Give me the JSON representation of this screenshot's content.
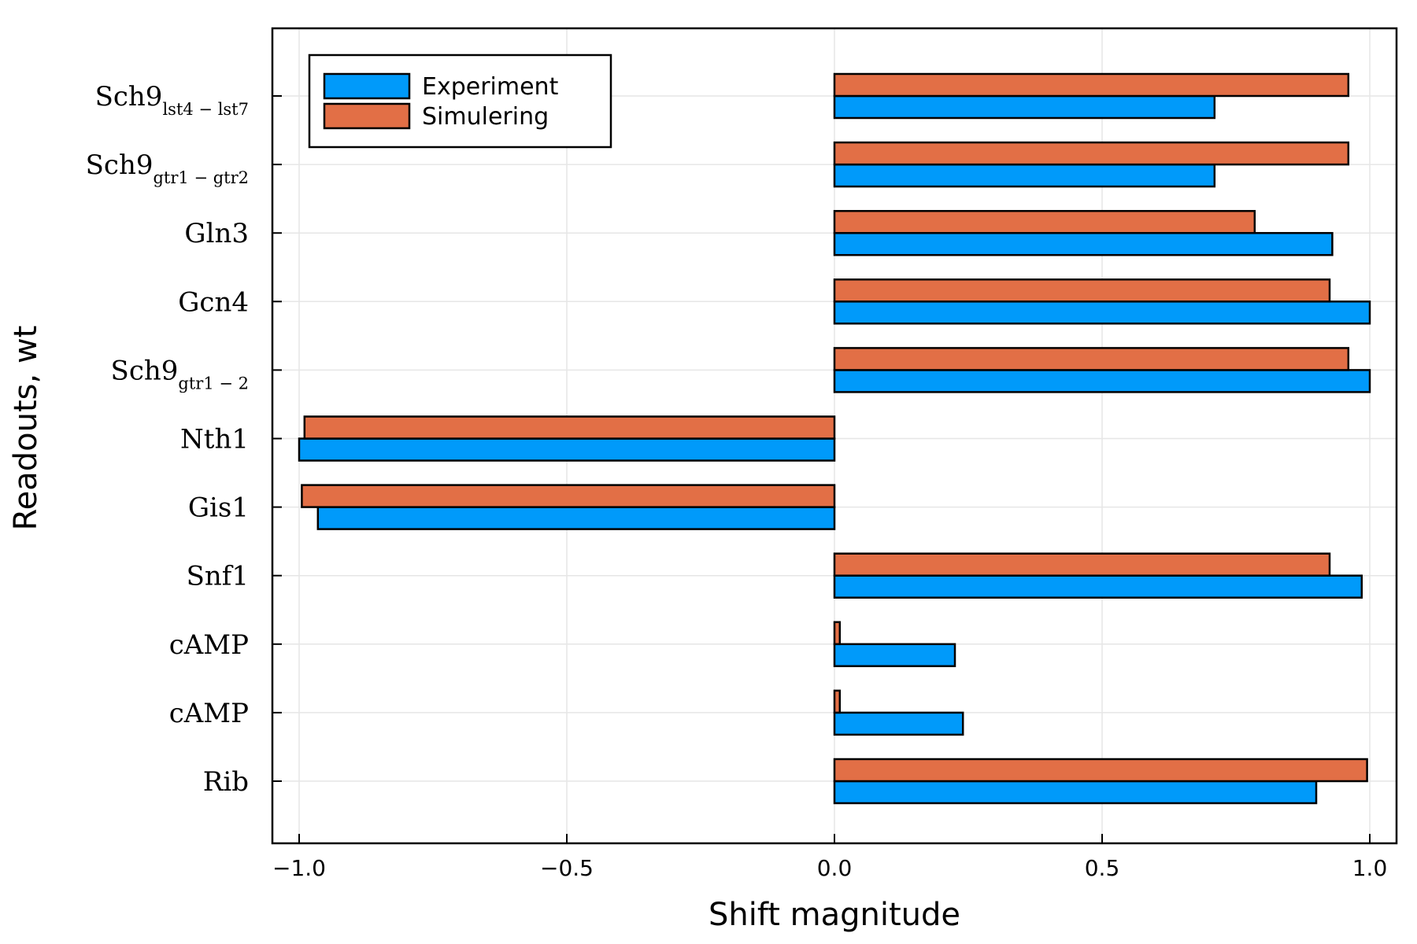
{
  "chart_data": {
    "type": "bar",
    "orientation": "horizontal",
    "categories": [
      {
        "main": "Sch9",
        "sub": "lst4 − lst7"
      },
      {
        "main": "Sch9",
        "sub": "gtr1 − gtr2"
      },
      {
        "main": "Gln3",
        "sub": ""
      },
      {
        "main": "Gcn4",
        "sub": ""
      },
      {
        "main": "Sch9",
        "sub": "gtr1 − 2"
      },
      {
        "main": "Nth1",
        "sub": ""
      },
      {
        "main": "Gis1",
        "sub": ""
      },
      {
        "main": "Snf1",
        "sub": ""
      },
      {
        "main": "cAMP",
        "sub": ""
      },
      {
        "main": "cAMP",
        "sub": ""
      },
      {
        "main": "Rib",
        "sub": ""
      }
    ],
    "series": [
      {
        "name": "Experiment",
        "color": "#009AFA",
        "values": [
          0.71,
          0.71,
          0.93,
          1.0,
          1.0,
          -1.0,
          -0.965,
          0.985,
          0.225,
          0.24,
          0.9
        ]
      },
      {
        "name": "Simulering",
        "color": "#E26F46",
        "values": [
          0.96,
          0.96,
          0.785,
          0.925,
          0.96,
          -0.99,
          -0.995,
          0.925,
          0.01,
          0.01,
          0.995
        ]
      }
    ],
    "xlabel": "Shift magnitude",
    "ylabel": "Readouts, wt",
    "xlim": [
      -1.05,
      1.05
    ],
    "xticks": [
      -1.0,
      -0.5,
      0.0,
      0.5,
      1.0
    ],
    "xtick_labels": [
      "−1.0",
      "−0.5",
      "0.0",
      "0.5",
      "1.0"
    ],
    "grid": true,
    "legend_position": "top-left"
  }
}
